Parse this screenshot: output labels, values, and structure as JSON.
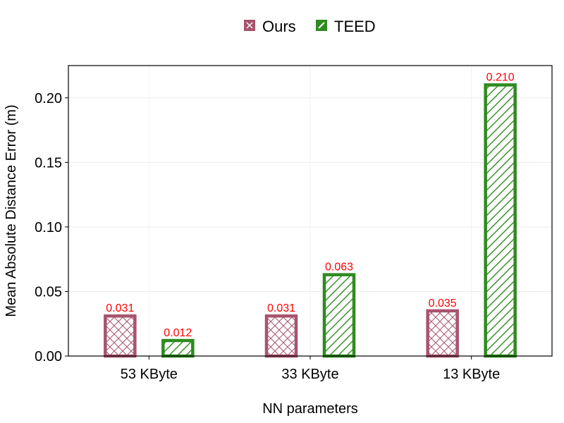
{
  "chart_data": {
    "type": "bar",
    "categories": [
      "53 KByte",
      "33 KByte",
      "13 KByte"
    ],
    "series": [
      {
        "name": "Ours",
        "values": [
          0.031,
          0.031,
          0.035
        ],
        "labels": [
          "0.031",
          "0.031",
          "0.035"
        ],
        "color": "#a8546e",
        "pattern": "crosshatch"
      },
      {
        "name": "TEED",
        "values": [
          0.012,
          0.063,
          0.21
        ],
        "labels": [
          "0.012",
          "0.063",
          "0.210"
        ],
        "color": "#2e8b1f",
        "pattern": "diagonal-hatch"
      }
    ],
    "xlabel": "NN parameters",
    "ylabel": "Mean Absolute Distance Error (m)",
    "ylim": [
      0,
      0.225
    ],
    "yticks": [
      0.0,
      0.05,
      0.1,
      0.15,
      0.2
    ],
    "ytick_labels": [
      "0.00",
      "0.05",
      "0.10",
      "0.15",
      "0.20"
    ],
    "grid": true,
    "legend_position": "top-center",
    "data_label_color": "#ff0000"
  }
}
